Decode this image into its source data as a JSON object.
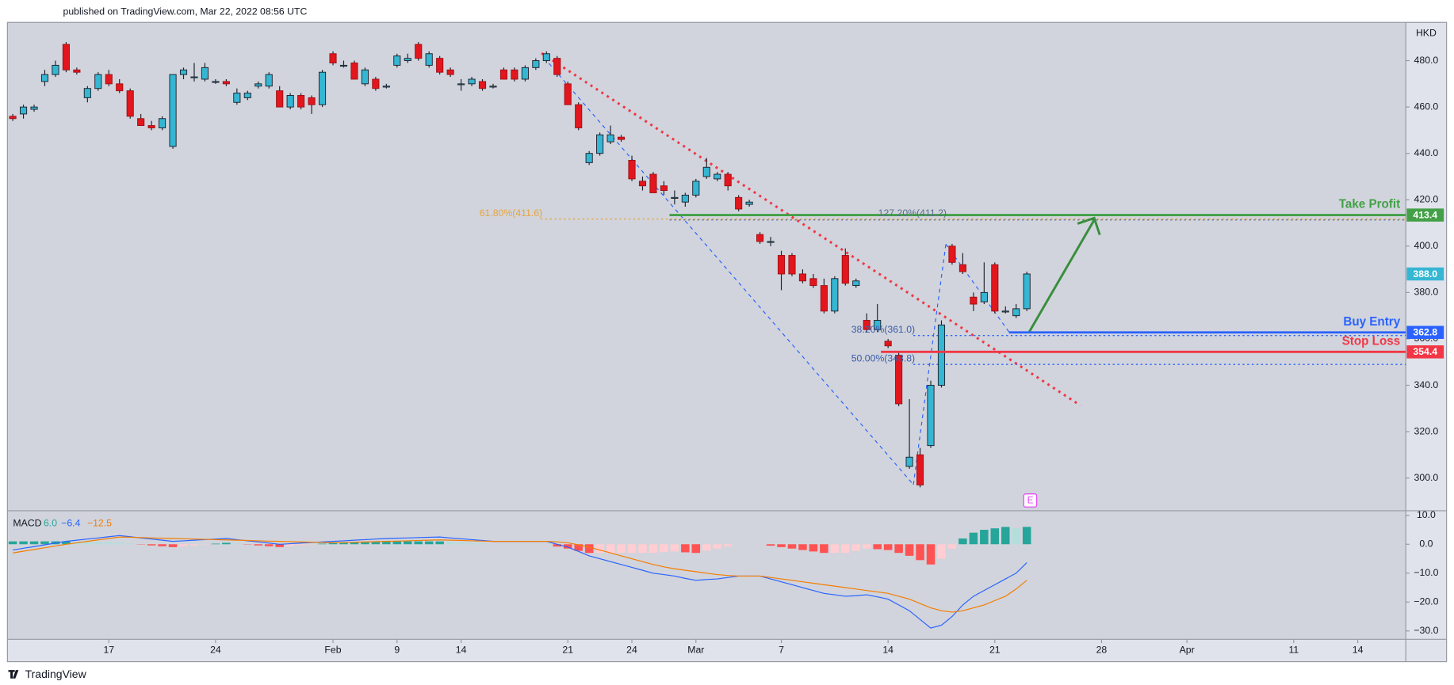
{
  "header": "published on TradingView.com, Mar 22, 2022 08:56 UTC",
  "footer": "TradingView",
  "chart_data": [
    {
      "type": "candlestick",
      "axis_label": "HKD",
      "categories": [
        null,
        null,
        null,
        null,
        null,
        null,
        null,
        null,
        null,
        "17",
        null,
        null,
        null,
        null,
        null,
        null,
        null,
        null,
        null,
        "24",
        null,
        null,
        null,
        null,
        null,
        null,
        null,
        null,
        null,
        null,
        "Feb",
        null,
        null,
        null,
        null,
        null,
        "9",
        null,
        null,
        null,
        null,
        null,
        "14",
        null,
        null,
        null,
        null,
        null,
        null,
        null,
        null,
        null,
        "21",
        null,
        null,
        null,
        null,
        null,
        "24",
        null,
        null,
        null,
        null,
        null,
        "Mar",
        null,
        null,
        null,
        null,
        null,
        null,
        null,
        "7",
        null,
        null,
        null,
        null,
        null,
        null,
        null,
        null,
        null,
        "14",
        null,
        null,
        null,
        null,
        null,
        null,
        null,
        null,
        null,
        "21",
        null,
        null,
        null,
        null,
        null,
        null,
        null,
        null,
        null,
        "28",
        null,
        null,
        null,
        null,
        null,
        null,
        null,
        "Apr",
        null,
        null,
        null,
        null,
        null,
        null,
        null,
        null,
        null,
        "11",
        null,
        null,
        null,
        null,
        null,
        "14",
        null,
        null,
        null,
        null
      ],
      "open": [
        456,
        457,
        459,
        471,
        474,
        487,
        476,
        464,
        468,
        474,
        470,
        467,
        455,
        452,
        451,
        443,
        474,
        473,
        472,
        471,
        471,
        462,
        464,
        469,
        469,
        467,
        460,
        465,
        464,
        461,
        483,
        478,
        479,
        470,
        472,
        469,
        478,
        480,
        487,
        478,
        481,
        476,
        470,
        470,
        471,
        469,
        476,
        476,
        472,
        477,
        480,
        481,
        470,
        461,
        436,
        440,
        445,
        447,
        437,
        428,
        431,
        426,
        421,
        419,
        422,
        430,
        429,
        431,
        421,
        418,
        405,
        402,
        396,
        396,
        388,
        386,
        383,
        372,
        396,
        383,
        368,
        364,
        359,
        353,
        305,
        310,
        314,
        340,
        400,
        392,
        378,
        376,
        392,
        372,
        370,
        373,
        null,
        null,
        null,
        null,
        null,
        null,
        null,
        null,
        null,
        null,
        null,
        null,
        null,
        null,
        null,
        null,
        null,
        null,
        null,
        null,
        null,
        null,
        null,
        null,
        null,
        null,
        null,
        null,
        null,
        null,
        null,
        null,
        null,
        null,
        null
      ],
      "high": [
        457,
        461,
        461,
        476,
        480,
        488,
        477,
        469,
        475,
        476,
        472,
        468,
        457,
        454,
        456,
        474,
        477,
        479,
        479,
        472,
        472,
        468,
        467,
        471,
        475,
        469,
        466,
        466,
        465,
        476,
        484,
        480,
        480,
        477,
        473,
        470,
        483,
        483,
        488,
        484,
        482,
        477,
        472,
        473,
        472,
        470,
        477,
        477,
        478,
        481,
        484,
        482,
        471,
        462,
        441,
        449,
        452,
        448,
        439,
        430,
        432,
        428,
        424,
        423,
        429,
        438,
        432,
        432,
        422,
        420,
        406,
        404,
        398,
        397,
        390,
        388,
        386,
        387,
        399,
        386,
        371,
        375,
        360,
        354,
        334,
        313,
        342,
        368,
        401,
        397,
        380,
        393,
        393,
        374,
        375,
        389,
        null,
        null,
        null,
        null,
        null,
        null,
        null,
        null,
        null,
        null,
        null,
        null,
        null,
        null,
        null,
        null,
        null,
        null,
        null,
        null,
        null,
        null,
        null,
        null,
        null,
        null,
        null,
        null,
        null,
        null,
        null,
        null,
        null,
        null,
        null
      ],
      "low": [
        454,
        455,
        458,
        469,
        473,
        475,
        474,
        462,
        467,
        469,
        466,
        455,
        452,
        450,
        450,
        442,
        472,
        471,
        471,
        470,
        469,
        461,
        463,
        468,
        468,
        460,
        459,
        459,
        457,
        460,
        478,
        477,
        472,
        469,
        467,
        468,
        477,
        479,
        480,
        477,
        474,
        473,
        467,
        469,
        467,
        468,
        472,
        471,
        471,
        476,
        479,
        473,
        461,
        450,
        435,
        439,
        444,
        445,
        428,
        424,
        423,
        422,
        418,
        417,
        421,
        429,
        428,
        424,
        415,
        417,
        401,
        400,
        381,
        387,
        384,
        382,
        371,
        371,
        383,
        382,
        363,
        363,
        356,
        331,
        304,
        296,
        313,
        339,
        392,
        388,
        372,
        375,
        371,
        371,
        369,
        372,
        null,
        null,
        null,
        null,
        null,
        null,
        null,
        null,
        null,
        null,
        null,
        null,
        null,
        null,
        null,
        null,
        null,
        null,
        null,
        null,
        null,
        null,
        null,
        null,
        null,
        null,
        null,
        null,
        null,
        null,
        null,
        null,
        null,
        null,
        null
      ],
      "close": [
        455,
        460,
        460,
        474,
        478,
        476,
        475,
        468,
        474,
        470,
        467,
        456,
        452,
        451,
        455,
        474,
        476,
        473,
        477,
        471,
        470,
        466,
        466,
        470,
        474,
        460,
        465,
        460,
        461,
        475,
        479,
        478,
        472,
        476,
        468,
        469,
        482,
        481,
        481,
        483,
        475,
        474,
        470,
        472,
        468,
        469,
        472,
        472,
        477,
        480,
        483,
        474,
        461,
        451,
        440,
        448,
        448,
        446,
        429,
        426,
        423,
        424,
        421,
        422,
        428,
        434,
        431,
        426,
        416,
        419,
        402,
        402,
        388,
        388,
        385,
        383,
        372,
        386,
        384,
        385,
        364,
        368,
        357,
        332,
        309,
        297,
        340,
        366,
        393,
        389,
        375,
        380,
        372,
        372,
        373,
        388,
        null,
        null,
        null,
        null,
        null,
        null,
        null,
        null,
        null,
        null,
        null,
        null,
        null,
        null,
        null,
        null,
        null,
        null,
        null,
        null,
        null,
        null,
        null,
        null,
        null,
        null,
        null,
        null,
        null,
        null,
        null,
        null,
        null,
        null,
        null
      ],
      "up_color": "#35b6d3",
      "down_color": "#e3161d",
      "ylim": [
        285.9,
        496.5
      ],
      "yticks": [
        {
          "value": 300,
          "label": "300.0"
        },
        {
          "value": 320,
          "label": "320.0"
        },
        {
          "value": 340,
          "label": "340.0"
        },
        {
          "value": 360,
          "label": "360.0"
        },
        {
          "value": 380,
          "label": "380.0"
        },
        {
          "value": 400,
          "label": "400.0"
        },
        {
          "value": 420,
          "label": "420.0"
        },
        {
          "value": 440,
          "label": "440.0"
        },
        {
          "value": 460,
          "label": "460.0"
        },
        {
          "value": 480,
          "label": "480.0"
        }
      ],
      "grid": false,
      "last_price_label": "388.0",
      "levels": [
        {
          "name": "Take Profit",
          "value": 413.4,
          "color": "#43a047"
        },
        {
          "name": "Buy Entry",
          "value": 362.8,
          "color": "#2962ff"
        },
        {
          "name": "Stop Loss",
          "value": 354.4,
          "color": "#f23645"
        }
      ],
      "fib_labels": [
        "61.80%(411.6)",
        "127.20%(411.2)",
        "38.20%(361.0)",
        "50.00%(348.8)"
      ],
      "event_marker": "E"
    },
    {
      "type": "macd",
      "title": "MACD",
      "legend_values": [
        "6.0",
        "−6.4",
        "−12.5"
      ],
      "series": [
        {
          "name": "Histogram",
          "colors": [
            "#26a69a",
            "#b2dfdb",
            "#ffcdd2",
            "#ff5252"
          ],
          "values": [
            1,
            1,
            1,
            1,
            1,
            1,
            0.9,
            0.8,
            0.7,
            0.6,
            0.5,
            0.2,
            -0.1,
            -0.4,
            -0.7,
            -1,
            -0.7,
            -0.4,
            -0.1,
            0.2,
            0.5,
            0.2,
            -0.1,
            -0.4,
            -0.7,
            -1,
            -0.7,
            -0.4,
            -0.1,
            0.2,
            0.5,
            0.6,
            0.7,
            0.8,
            0.9,
            1,
            1,
            1,
            1,
            1,
            1,
            0.8,
            0.6,
            0.4,
            0.2,
            0,
            0,
            0,
            0,
            0,
            0,
            -0.8,
            -1.5,
            -2.3,
            -3,
            -3,
            -3,
            -3,
            -3,
            -3,
            -3,
            -2.7,
            -2.5,
            -2.8,
            -3,
            -2.2,
            -1.5,
            -0.7,
            0,
            0,
            0,
            -0.5,
            -1,
            -1.5,
            -2,
            -2.5,
            -3,
            -3,
            -3,
            -2.3,
            -1.5,
            -1.7,
            -2,
            -3,
            -4,
            -5.5,
            -7,
            -5,
            -1.5,
            2,
            4,
            5,
            5.5,
            6,
            5.5,
            6.0,
            null,
            null,
            null,
            null,
            null,
            null,
            null,
            null,
            null,
            null,
            null,
            null,
            null,
            null,
            null,
            null,
            null,
            null,
            null,
            null,
            null,
            null,
            null,
            null,
            null,
            null,
            null,
            null,
            null,
            null,
            null,
            null,
            null,
            null,
            null
          ]
        },
        {
          "name": "MACD",
          "color": "#2962ff",
          "values": [
            -2,
            -1.4,
            -0.8,
            -0.2,
            0.4,
            1,
            1.4,
            1.8,
            2.2,
            2.6,
            3,
            2.6,
            2.2,
            1.8,
            1.4,
            1,
            1.2,
            1.4,
            1.6,
            1.8,
            2,
            1.6,
            1.2,
            0.8,
            0.4,
            0,
            0.2,
            0.4,
            0.6,
            0.8,
            1,
            1.2,
            1.4,
            1.6,
            1.8,
            2,
            2.1,
            2.2,
            2.3,
            2.4,
            2.5,
            2.2,
            1.9,
            1.6,
            1.3,
            1,
            1,
            1,
            1,
            1,
            1,
            0,
            -1,
            -2.5,
            -4,
            -5,
            -6,
            -7,
            -8,
            -9,
            -10,
            -10.5,
            -11,
            -11.8,
            -12.5,
            -12.2,
            -12,
            -11.5,
            -11,
            -11,
            -11,
            -12,
            -13,
            -14,
            -15,
            -16,
            -17,
            -17.5,
            -18,
            -17.8,
            -17.5,
            -18.2,
            -19,
            -21,
            -23,
            -26,
            -29,
            -28,
            -25,
            -21,
            -18,
            -16,
            -14,
            -12,
            -10,
            -6.4,
            null,
            null,
            null,
            null,
            null,
            null,
            null,
            null,
            null,
            null,
            null,
            null,
            null,
            null,
            null,
            null,
            null,
            null,
            null,
            null,
            null,
            null,
            null,
            null,
            null,
            null,
            null,
            null,
            null,
            null,
            null,
            null,
            null,
            null,
            null
          ]
        },
        {
          "name": "Signal",
          "color": "#f57c00",
          "values": [
            -3,
            -2.4,
            -1.8,
            -1.2,
            -0.6,
            0,
            0.5,
            1,
            1.5,
            2,
            2.5,
            2.4,
            2.3,
            2.2,
            2.1,
            2,
            1.9,
            1.8,
            1.7,
            1.6,
            1.5,
            1.4,
            1.3,
            1.2,
            1.1,
            1,
            0.9,
            0.8,
            0.7,
            0.6,
            0.5,
            0.6,
            0.7,
            0.8,
            0.9,
            1,
            1.1,
            1.2,
            1.3,
            1.4,
            1.5,
            1.4,
            1.3,
            1.2,
            1.1,
            1,
            1,
            1,
            1,
            1,
            1,
            0.8,
            0.5,
            -0.2,
            -1,
            -2,
            -3,
            -4,
            -5,
            -6,
            -7,
            -7.8,
            -8.5,
            -9,
            -9.5,
            -10,
            -10.5,
            -10.8,
            -11,
            -11,
            -11,
            -11.5,
            -12,
            -12.5,
            -13,
            -13.5,
            -14,
            -14.5,
            -15,
            -15.5,
            -16,
            -16.5,
            -17,
            -18,
            -19,
            -20.5,
            -22,
            -23,
            -23.5,
            -23,
            -22,
            -21,
            -19.5,
            -18,
            -15.5,
            -12.5,
            null,
            null,
            null,
            null,
            null,
            null,
            null,
            null,
            null,
            null,
            null,
            null,
            null,
            null,
            null,
            null,
            null,
            null,
            null,
            null,
            null,
            null,
            null,
            null,
            null,
            null,
            null,
            null,
            null,
            null,
            null,
            null,
            null,
            null,
            null
          ]
        }
      ],
      "ylim": [
        -32.9,
        11.6
      ],
      "yticks": [
        {
          "value": 10,
          "label": "10.0"
        },
        {
          "value": 0,
          "label": "0.0"
        },
        {
          "value": -10,
          "label": "−10.0"
        },
        {
          "value": -20,
          "label": "−20.0"
        },
        {
          "value": -30,
          "label": "−30.0"
        }
      ]
    }
  ]
}
